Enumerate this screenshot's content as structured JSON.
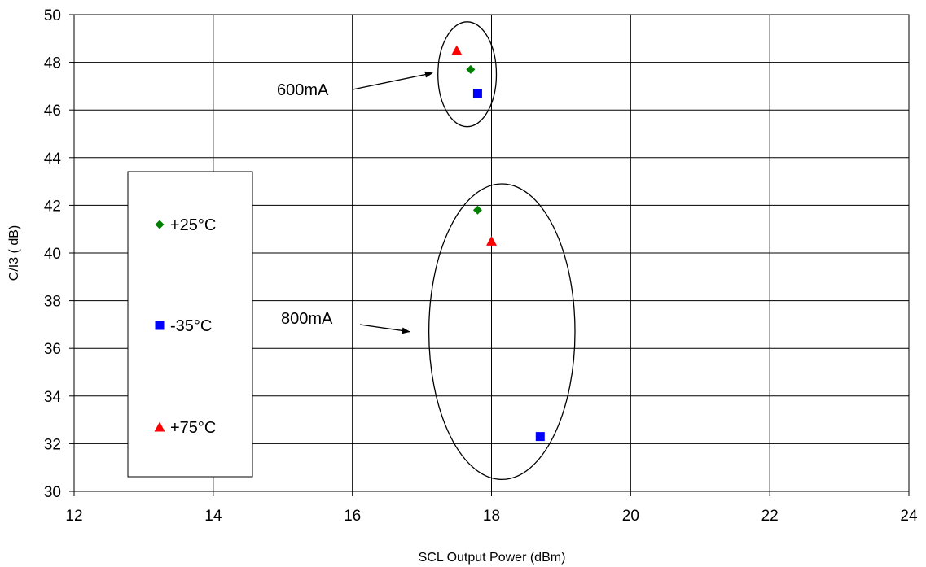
{
  "chart_data": {
    "type": "scatter",
    "title": "",
    "xlabel": "SCL Output Power (dBm)",
    "ylabel": "C/I3 ( dB)",
    "xlim": [
      12,
      24
    ],
    "ylim": [
      30,
      50
    ],
    "xticks": [
      12,
      14,
      16,
      18,
      20,
      22,
      24
    ],
    "yticks": [
      30,
      32,
      34,
      36,
      38,
      40,
      42,
      44,
      46,
      48,
      50
    ],
    "grid": true,
    "legend_placement": "left",
    "series": [
      {
        "name": "+25°C",
        "marker": "diamond",
        "color": "#008000",
        "points": [
          {
            "x": 17.7,
            "y": 47.7
          },
          {
            "x": 17.8,
            "y": 41.8
          }
        ]
      },
      {
        "name": "-35°C",
        "marker": "square",
        "color": "#0000ff",
        "points": [
          {
            "x": 17.8,
            "y": 46.7
          },
          {
            "x": 18.7,
            "y": 32.3
          }
        ]
      },
      {
        "name": "+75°C",
        "marker": "triangle",
        "color": "#ff0000",
        "points": [
          {
            "x": 17.5,
            "y": 48.5
          },
          {
            "x": 18.0,
            "y": 40.5
          }
        ]
      }
    ],
    "annotations": [
      {
        "text": "600mA",
        "ellipse": {
          "cx": 17.65,
          "cy": 47.5,
          "rx": 0.42,
          "ry": 2.2
        },
        "arrow_to": {
          "x": 17.15,
          "y": 47.55
        }
      },
      {
        "text": "800mA",
        "ellipse": {
          "cx": 18.15,
          "cy": 36.7,
          "rx": 1.05,
          "ry": 6.2
        },
        "arrow_to": {
          "x": 16.82,
          "y": 36.7
        }
      }
    ]
  }
}
